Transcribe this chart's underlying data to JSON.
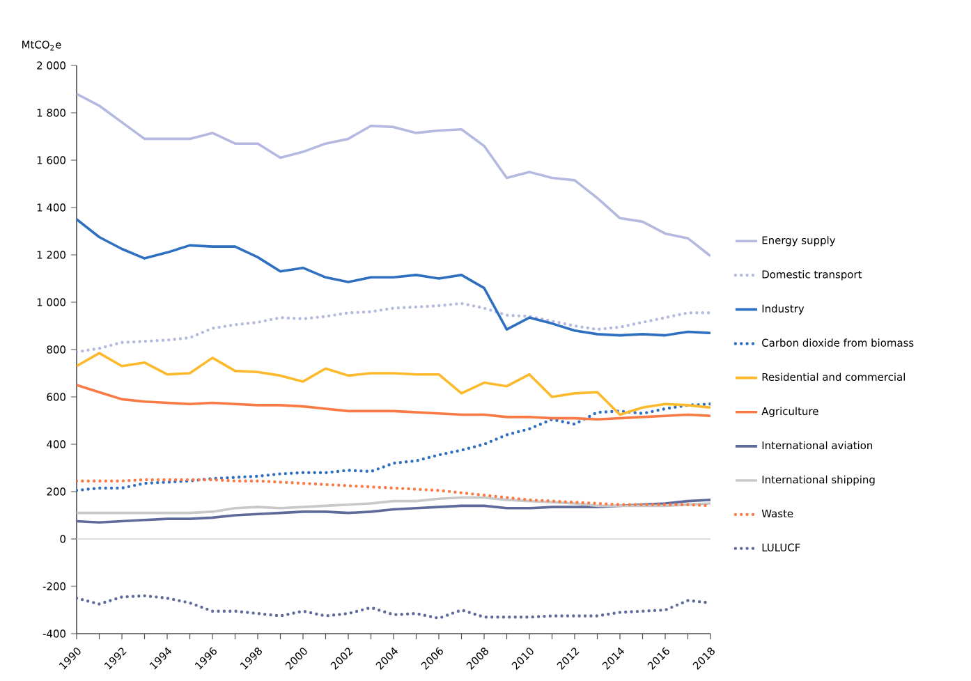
{
  "chart_data": {
    "type": "line",
    "ylabel": "MtCO$_{2}$e",
    "x": [
      1990,
      1991,
      1992,
      1993,
      1994,
      1995,
      1996,
      1997,
      1998,
      1999,
      2000,
      2001,
      2002,
      2003,
      2004,
      2005,
      2006,
      2007,
      2008,
      2009,
      2010,
      2011,
      2012,
      2013,
      2014,
      2015,
      2016,
      2017,
      2018
    ],
    "xlim": [
      1990,
      2018
    ],
    "xticks": [
      1990,
      {
        "value": 1991,
        "label": null
      },
      1992,
      {
        "value": 1993,
        "label": null
      },
      1994,
      {
        "value": 1995,
        "label": null
      },
      1996,
      {
        "value": 1997,
        "label": null
      },
      1998,
      {
        "value": 1999,
        "label": null
      },
      2000,
      {
        "value": 2001,
        "label": null
      },
      2002,
      {
        "value": 2003,
        "label": null
      },
      2004,
      {
        "value": 2005,
        "label": null
      },
      2006,
      {
        "value": 2007,
        "label": null
      },
      2008,
      {
        "value": 2009,
        "label": null
      },
      2010,
      {
        "value": 2011,
        "label": null
      },
      2012,
      {
        "value": 2013,
        "label": null
      },
      2014,
      {
        "value": 2015,
        "label": null
      },
      2016,
      {
        "value": 2017,
        "label": null
      },
      2018
    ],
    "ylim": [
      -400,
      2000
    ],
    "yticks": [
      -400,
      -200,
      0,
      200,
      400,
      600,
      800,
      {
        "value": 1000,
        "label": "1 000"
      },
      {
        "value": 1200,
        "label": "1 200"
      },
      {
        "value": 1400,
        "label": "1 400"
      },
      {
        "value": 1600,
        "label": "1 600"
      },
      {
        "value": 1800,
        "label": "1 800"
      },
      {
        "value": 2000,
        "label": "2 000"
      }
    ],
    "grid": false,
    "legend": "right",
    "ref_lines": [
      {
        "axis": "y",
        "value": 0,
        "color": "#dcdcdc"
      }
    ],
    "series": [
      {
        "name": "Energy supply",
        "color": "#b4b9e0",
        "line_style": "solid",
        "values": [
          1880,
          1830,
          1760,
          1690,
          1690,
          1690,
          1715,
          1670,
          1670,
          1610,
          1635,
          1670,
          1690,
          1745,
          1740,
          1715,
          1725,
          1730,
          1660,
          1525,
          1550,
          1525,
          1515,
          1440,
          1355,
          1340,
          1290,
          1270,
          1195
        ]
      },
      {
        "name": "Domestic transport",
        "color": "#b4b9e0",
        "line_style": "dotted",
        "values": [
          790,
          805,
          830,
          835,
          840,
          850,
          890,
          905,
          915,
          935,
          930,
          940,
          955,
          960,
          975,
          980,
          985,
          995,
          975,
          945,
          940,
          920,
          900,
          885,
          895,
          915,
          935,
          955,
          955
        ]
      },
      {
        "name": "Industry",
        "color": "#2e6fbf",
        "line_style": "solid",
        "values": [
          1350,
          1275,
          1225,
          1185,
          1210,
          1240,
          1235,
          1235,
          1190,
          1130,
          1145,
          1105,
          1085,
          1105,
          1105,
          1115,
          1100,
          1115,
          1060,
          885,
          935,
          910,
          880,
          865,
          860,
          865,
          860,
          875,
          870
        ]
      },
      {
        "name": "Carbon dioxide from biomass",
        "color": "#2e6fbf",
        "line_style": "dotted",
        "values": [
          205,
          215,
          215,
          235,
          240,
          245,
          255,
          260,
          265,
          275,
          280,
          280,
          290,
          285,
          320,
          330,
          355,
          375,
          400,
          440,
          465,
          505,
          485,
          535,
          540,
          530,
          550,
          565,
          570
        ]
      },
      {
        "name": "Residential and commercial",
        "color": "#fcb92c",
        "line_style": "solid",
        "values": [
          730,
          785,
          730,
          745,
          695,
          700,
          765,
          710,
          705,
          690,
          665,
          720,
          690,
          700,
          700,
          695,
          695,
          615,
          660,
          645,
          695,
          600,
          615,
          620,
          525,
          555,
          570,
          565,
          555
        ]
      },
      {
        "name": "Agriculture",
        "color": "#f97a45",
        "line_style": "solid",
        "values": [
          650,
          620,
          590,
          580,
          575,
          570,
          575,
          570,
          565,
          565,
          560,
          550,
          540,
          540,
          540,
          535,
          530,
          525,
          525,
          515,
          515,
          510,
          510,
          505,
          510,
          515,
          520,
          525,
          520
        ]
      },
      {
        "name": "International aviation",
        "color": "#5d6a9a",
        "line_style": "solid",
        "values": [
          75,
          70,
          75,
          80,
          85,
          85,
          90,
          100,
          105,
          110,
          115,
          115,
          110,
          115,
          125,
          130,
          135,
          140,
          140,
          130,
          130,
          135,
          135,
          135,
          140,
          145,
          150,
          160,
          165
        ]
      },
      {
        "name": "International shipping",
        "color": "#c8c8c8",
        "line_style": "solid",
        "values": [
          110,
          110,
          110,
          110,
          110,
          110,
          115,
          130,
          135,
          130,
          135,
          140,
          145,
          150,
          160,
          160,
          170,
          175,
          175,
          165,
          160,
          155,
          150,
          140,
          140,
          140,
          140,
          145,
          150
        ]
      },
      {
        "name": "Waste",
        "color": "#f97a45",
        "line_style": "dotted",
        "values": [
          245,
          245,
          245,
          250,
          250,
          250,
          250,
          245,
          245,
          240,
          235,
          230,
          225,
          220,
          215,
          210,
          205,
          195,
          185,
          175,
          165,
          160,
          155,
          150,
          145,
          145,
          145,
          145,
          140
        ]
      },
      {
        "name": "LULUCF",
        "color": "#5d6a9a",
        "line_style": "dotted",
        "values": [
          -250,
          -275,
          -245,
          -240,
          -250,
          -270,
          -305,
          -305,
          -315,
          -325,
          -305,
          -325,
          -315,
          -290,
          -320,
          -315,
          -335,
          -300,
          -330,
          -330,
          -330,
          -325,
          -325,
          -325,
          -310,
          -305,
          -300,
          -260,
          -270
        ]
      }
    ]
  }
}
